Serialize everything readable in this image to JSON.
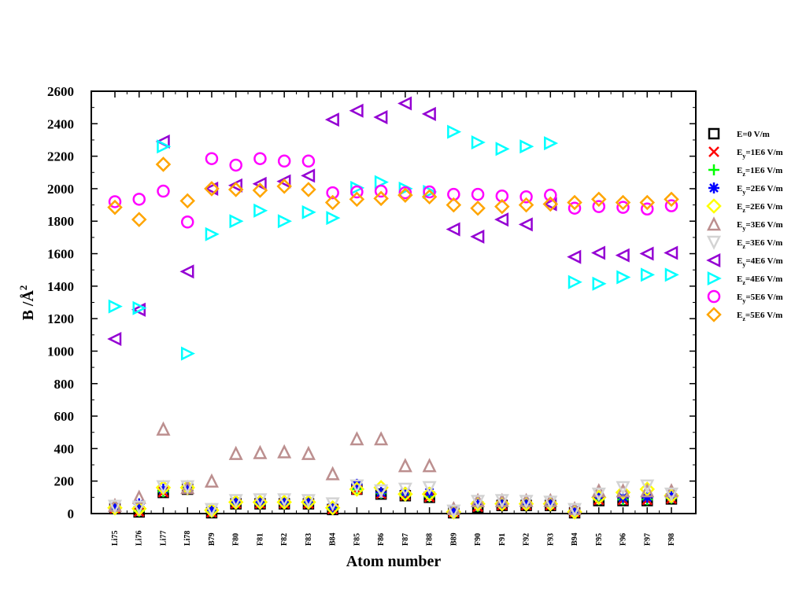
{
  "chart_data": {
    "type": "scatter",
    "xlabel": "Atom number",
    "ylabel": "B /Å",
    "ylabel_superscript": "2",
    "ylim": [
      0,
      2600
    ],
    "yticks": [
      0,
      200,
      400,
      600,
      800,
      1000,
      1200,
      1400,
      1600,
      1800,
      2000,
      2200,
      2400,
      2600
    ],
    "categories": [
      "Li75",
      "Li76",
      "Li77",
      "Li78",
      "B79",
      "F80",
      "F81",
      "F82",
      "F83",
      "B84",
      "F85",
      "F86",
      "F87",
      "F88",
      "B89",
      "F90",
      "F91",
      "F92",
      "F93",
      "B94",
      "F95",
      "F96",
      "F97",
      "F98"
    ],
    "legend_position": "right",
    "grid": false,
    "series": [
      {
        "name": "E=0 V/m",
        "label_base": "E",
        "label_sub": "",
        "label_rest": "=0 V/m",
        "marker": "square",
        "color": "#000000",
        "values": [
          30,
          10,
          130,
          150,
          5,
          60,
          60,
          60,
          60,
          25,
          150,
          120,
          110,
          100,
          5,
          40,
          50,
          50,
          50,
          5,
          80,
          80,
          80,
          90
        ]
      },
      {
        "name": "Ey=1E6 V/m",
        "label_base": "E",
        "label_sub": "y",
        "label_rest": "=1E6 V/m",
        "marker": "x",
        "color": "#ff0000",
        "values": [
          32,
          12,
          132,
          152,
          8,
          62,
          62,
          62,
          62,
          28,
          148,
          122,
          112,
          102,
          8,
          42,
          52,
          52,
          52,
          8,
          84,
          84,
          84,
          92
        ]
      },
      {
        "name": "Ez=1E6 V/m",
        "label_base": "E",
        "label_sub": "z",
        "label_rest": "=1E6 V/m",
        "marker": "plus",
        "color": "#00ff00",
        "values": [
          35,
          15,
          135,
          155,
          10,
          65,
          65,
          65,
          65,
          30,
          150,
          125,
          115,
          105,
          10,
          45,
          55,
          55,
          55,
          10,
          86,
          86,
          86,
          95
        ]
      },
      {
        "name": "Ey=2E6 V/m",
        "label_base": "E",
        "label_sub": "y",
        "label_rest": "=2E6 V/m",
        "marker": "star",
        "color": "#0000ff",
        "values": [
          40,
          60,
          150,
          155,
          20,
          70,
          70,
          70,
          70,
          40,
          180,
          130,
          130,
          130,
          15,
          60,
          60,
          60,
          60,
          20,
          110,
          100,
          100,
          110
        ]
      },
      {
        "name": "Ez=2E6 V/m",
        "label_base": "E",
        "label_sub": "z",
        "label_rest": "=2E6 V/m",
        "marker": "diamond",
        "color": "#ffff00",
        "values": [
          35,
          30,
          160,
          160,
          20,
          70,
          70,
          70,
          70,
          35,
          150,
          160,
          120,
          120,
          10,
          60,
          60,
          60,
          60,
          10,
          100,
          130,
          150,
          110
        ]
      },
      {
        "name": "Ey=3E6 V/m",
        "label_base": "E",
        "label_sub": "y",
        "label_rest": "=3E6 V/m",
        "marker": "triangle-up",
        "color": "#bc8f8f",
        "values": [
          50,
          100,
          520,
          160,
          200,
          370,
          375,
          380,
          370,
          245,
          460,
          460,
          295,
          295,
          30,
          80,
          80,
          80,
          80,
          30,
          140,
          140,
          140,
          140
        ]
      },
      {
        "name": "Ez=3E6 V/m",
        "label_base": "E",
        "label_sub": "z",
        "label_rest": "=3E6 V/m",
        "marker": "triangle-down",
        "color": "#d3d3d3",
        "values": [
          45,
          40,
          165,
          165,
          25,
          80,
          85,
          85,
          80,
          60,
          170,
          140,
          150,
          160,
          15,
          75,
          80,
          75,
          70,
          25,
          120,
          160,
          170,
          120
        ]
      },
      {
        "name": "Ey=4E6 V/m",
        "label_base": "E",
        "label_sub": "y",
        "label_rest": "=4E6 V/m",
        "marker": "triangle-left",
        "color": "#9400d3",
        "values": [
          1075,
          1255,
          2290,
          1490,
          2000,
          2020,
          2030,
          2045,
          2080,
          2425,
          2480,
          2440,
          2525,
          2460,
          1750,
          1705,
          1810,
          1780,
          1905,
          1580,
          1605,
          1590,
          1600,
          1605
        ]
      },
      {
        "name": "Ez=4E6 V/m",
        "label_base": "E",
        "label_sub": "z",
        "label_rest": "=4E6 V/m",
        "marker": "triangle-right",
        "color": "#00ffff",
        "values": [
          1275,
          1265,
          2260,
          985,
          1720,
          1800,
          1865,
          1800,
          1855,
          1820,
          2005,
          2040,
          2000,
          1980,
          2350,
          2285,
          2245,
          2260,
          2280,
          1425,
          1415,
          1455,
          1470,
          1470
        ]
      },
      {
        "name": "Ey=5E6 V/m",
        "label_base": "E",
        "label_sub": "y",
        "label_rest": "=5E6 V/m",
        "marker": "circle",
        "color": "#ff00ff",
        "values": [
          1920,
          1935,
          1985,
          1795,
          2185,
          2145,
          2185,
          2170,
          2170,
          1975,
          1980,
          1985,
          1975,
          1980,
          1965,
          1965,
          1955,
          1950,
          1960,
          1880,
          1890,
          1885,
          1875,
          1895
        ]
      },
      {
        "name": "Ez=5E6 V/m",
        "label_base": "E",
        "label_sub": "z",
        "label_rest": "=5E6 V/m",
        "marker": "diamond",
        "color": "#ffa500",
        "values": [
          1885,
          1810,
          2150,
          1925,
          2000,
          1995,
          1990,
          2015,
          1995,
          1915,
          1935,
          1940,
          1960,
          1950,
          1900,
          1880,
          1890,
          1900,
          1905,
          1915,
          1935,
          1915,
          1915,
          1935
        ]
      }
    ]
  }
}
